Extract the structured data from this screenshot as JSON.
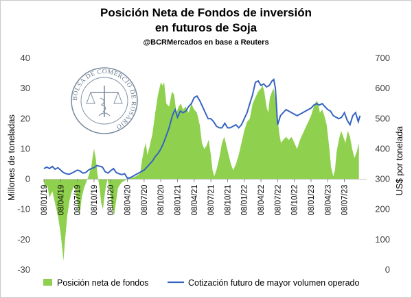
{
  "chart_data": {
    "type": "area",
    "title_line1": "Posición Neta de Fondos de inversión",
    "title_line2": "en futuros de Soja",
    "subtitle": "@BCRMercados  en base a Reuters",
    "ylabel_left": "Millones de toneladas",
    "ylabel_right": "US$ por tonelada",
    "ylim_left": [
      -30,
      40
    ],
    "ylim_right": [
      0,
      700
    ],
    "yticks_left": [
      -30,
      -20,
      -10,
      0,
      10,
      20,
      30,
      40
    ],
    "yticks_right": [
      0,
      100,
      200,
      300,
      400,
      500,
      600,
      700
    ],
    "xlim": [
      0,
      58
    ],
    "xtick_labels": [
      {
        "t": 0,
        "label": "08/01/19"
      },
      {
        "t": 3,
        "label": "08/04/19"
      },
      {
        "t": 6,
        "label": "08/07/19"
      },
      {
        "t": 9,
        "label": "08/10/19"
      },
      {
        "t": 12,
        "label": "08/01/20"
      },
      {
        "t": 15,
        "label": "08/04/20"
      },
      {
        "t": 18,
        "label": "08/07/20"
      },
      {
        "t": 21,
        "label": "08/10/20"
      },
      {
        "t": 24,
        "label": "08/01/21"
      },
      {
        "t": 27,
        "label": "08/04/21"
      },
      {
        "t": 30,
        "label": "08/07/21"
      },
      {
        "t": 33,
        "label": "08/10/21"
      },
      {
        "t": 36,
        "label": "08/01/22"
      },
      {
        "t": 39,
        "label": "08/04/22"
      },
      {
        "t": 42,
        "label": "08/07/22"
      },
      {
        "t": 45,
        "label": "08/10/22"
      },
      {
        "t": 48,
        "label": "08/01/23"
      },
      {
        "t": 51,
        "label": "08/04/23"
      },
      {
        "t": 54,
        "label": "08/07/23"
      }
    ],
    "series": [
      {
        "name": "Posición neta de fondos",
        "axis": "left",
        "color": "#8fd14f",
        "points": [
          [
            0,
            -1
          ],
          [
            0.3,
            -3
          ],
          [
            0.6,
            -2
          ],
          [
            1,
            -6
          ],
          [
            1.5,
            -4
          ],
          [
            2,
            -8
          ],
          [
            2.5,
            -12
          ],
          [
            3,
            -18
          ],
          [
            3.3,
            -23
          ],
          [
            3.5,
            -27
          ],
          [
            3.8,
            -20
          ],
          [
            4.2,
            -12
          ],
          [
            4.6,
            -7
          ],
          [
            5,
            -4
          ],
          [
            5.5,
            -2
          ],
          [
            6,
            -8
          ],
          [
            6.4,
            -12
          ],
          [
            6.8,
            -6
          ],
          [
            7.2,
            -3
          ],
          [
            7.6,
            -1
          ],
          [
            8,
            1
          ],
          [
            8.5,
            4
          ],
          [
            8.8,
            8
          ],
          [
            9,
            10
          ],
          [
            9.3,
            7
          ],
          [
            9.6,
            2
          ],
          [
            10,
            -3
          ],
          [
            10.3,
            -8
          ],
          [
            10.6,
            -10
          ],
          [
            11,
            -4
          ],
          [
            11.4,
            0
          ],
          [
            11.8,
            -3
          ],
          [
            12.2,
            -9
          ],
          [
            12.6,
            -12
          ],
          [
            13,
            -7
          ],
          [
            13.3,
            -3
          ],
          [
            13.6,
            -2
          ],
          [
            14,
            -1
          ],
          [
            14.5,
            -0.5
          ],
          [
            15,
            0
          ],
          [
            15.5,
            0.5
          ],
          [
            16,
            0.5
          ],
          [
            16.5,
            1
          ],
          [
            17,
            1.5
          ],
          [
            17.3,
            2
          ],
          [
            17.6,
            6
          ],
          [
            18,
            10
          ],
          [
            18.3,
            12
          ],
          [
            18.6,
            8
          ],
          [
            19,
            11
          ],
          [
            19.5,
            15
          ],
          [
            20,
            22
          ],
          [
            20.5,
            28
          ],
          [
            21,
            32
          ],
          [
            21.3,
            31
          ],
          [
            21.6,
            32
          ],
          [
            22,
            25
          ],
          [
            22.5,
            24
          ],
          [
            23,
            29
          ],
          [
            23.4,
            28
          ],
          [
            23.8,
            22
          ],
          [
            24.2,
            24
          ],
          [
            24.6,
            25
          ],
          [
            25,
            23
          ],
          [
            25.5,
            24
          ],
          [
            26,
            22
          ],
          [
            26.5,
            25
          ],
          [
            27,
            23
          ],
          [
            27.5,
            22
          ],
          [
            28,
            18
          ],
          [
            28.4,
            12
          ],
          [
            28.8,
            10
          ],
          [
            29.2,
            11
          ],
          [
            29.6,
            13
          ],
          [
            30,
            8
          ],
          [
            30.3,
            3
          ],
          [
            30.6,
            1
          ],
          [
            31,
            3
          ],
          [
            31.5,
            7
          ],
          [
            32,
            12
          ],
          [
            32.4,
            14
          ],
          [
            32.8,
            11
          ],
          [
            33.2,
            8
          ],
          [
            33.6,
            5
          ],
          [
            34,
            3
          ],
          [
            34.5,
            5
          ],
          [
            35,
            8
          ],
          [
            35.5,
            12
          ],
          [
            36,
            16
          ],
          [
            36.5,
            19
          ],
          [
            37,
            20
          ],
          [
            37.5,
            25
          ],
          [
            38,
            27
          ],
          [
            38.5,
            29
          ],
          [
            39,
            30
          ],
          [
            39.3,
            31
          ],
          [
            39.6,
            29
          ],
          [
            40,
            24
          ],
          [
            40.3,
            22
          ],
          [
            40.6,
            27
          ],
          [
            41,
            29
          ],
          [
            41.3,
            30
          ],
          [
            41.6,
            26
          ],
          [
            42,
            20
          ],
          [
            42.3,
            15
          ],
          [
            42.6,
            12
          ],
          [
            43,
            13
          ],
          [
            43.5,
            14
          ],
          [
            44,
            13
          ],
          [
            44.5,
            14
          ],
          [
            45,
            12
          ],
          [
            45.5,
            10
          ],
          [
            46,
            13
          ],
          [
            46.5,
            15
          ],
          [
            47,
            17
          ],
          [
            47.5,
            19
          ],
          [
            48,
            21
          ],
          [
            48.5,
            24
          ],
          [
            49,
            26
          ],
          [
            49.3,
            25
          ],
          [
            49.6,
            22
          ],
          [
            50,
            23
          ],
          [
            50.4,
            21
          ],
          [
            50.8,
            18
          ],
          [
            51,
            15
          ],
          [
            51.3,
            10
          ],
          [
            51.6,
            4
          ],
          [
            52,
            1
          ],
          [
            52.3,
            3
          ],
          [
            52.6,
            9
          ],
          [
            53,
            13
          ],
          [
            53.4,
            16
          ],
          [
            53.8,
            14
          ],
          [
            54.2,
            12
          ],
          [
            54.6,
            16
          ],
          [
            55,
            14
          ],
          [
            55.4,
            10
          ],
          [
            55.8,
            7
          ],
          [
            56.2,
            9
          ],
          [
            56.6,
            12
          ]
        ]
      },
      {
        "name": "Cotización futuro de mayor volumen operado",
        "axis": "right",
        "color": "#3563c2",
        "points": [
          [
            0,
            335
          ],
          [
            0.5,
            340
          ],
          [
            1,
            335
          ],
          [
            1.5,
            342
          ],
          [
            2,
            333
          ],
          [
            2.5,
            338
          ],
          [
            3,
            330
          ],
          [
            3.5,
            322
          ],
          [
            4,
            318
          ],
          [
            4.5,
            316
          ],
          [
            5,
            320
          ],
          [
            5.5,
            325
          ],
          [
            6,
            330
          ],
          [
            6.5,
            327
          ],
          [
            7,
            320
          ],
          [
            7.5,
            322
          ],
          [
            8,
            330
          ],
          [
            8.5,
            335
          ],
          [
            9,
            338
          ],
          [
            9.5,
            345
          ],
          [
            10,
            343
          ],
          [
            10.5,
            340
          ],
          [
            11,
            325
          ],
          [
            11.5,
            320
          ],
          [
            12,
            328
          ],
          [
            12.5,
            335
          ],
          [
            13,
            322
          ],
          [
            13.5,
            318
          ],
          [
            14,
            315
          ],
          [
            14.5,
            318
          ],
          [
            15,
            303
          ],
          [
            15.5,
            305
          ],
          [
            16,
            310
          ],
          [
            16.5,
            315
          ],
          [
            17,
            320
          ],
          [
            17.5,
            325
          ],
          [
            18,
            330
          ],
          [
            18.5,
            340
          ],
          [
            19,
            350
          ],
          [
            19.5,
            360
          ],
          [
            20,
            375
          ],
          [
            20.5,
            385
          ],
          [
            21,
            400
          ],
          [
            21.5,
            420
          ],
          [
            22,
            445
          ],
          [
            22.5,
            470
          ],
          [
            23,
            505
          ],
          [
            23.3,
            520
          ],
          [
            23.6,
            530
          ],
          [
            24,
            505
          ],
          [
            24.5,
            525
          ],
          [
            25,
            520
          ],
          [
            25.5,
            525
          ],
          [
            26,
            540
          ],
          [
            26.5,
            550
          ],
          [
            27,
            570
          ],
          [
            27.5,
            575
          ],
          [
            28,
            560
          ],
          [
            28.5,
            540
          ],
          [
            29,
            520
          ],
          [
            29.5,
            500
          ],
          [
            30,
            500
          ],
          [
            30.5,
            490
          ],
          [
            31,
            475
          ],
          [
            31.5,
            470
          ],
          [
            32,
            470
          ],
          [
            32.5,
            485
          ],
          [
            33,
            470
          ],
          [
            33.5,
            470
          ],
          [
            34,
            475
          ],
          [
            34.5,
            480
          ],
          [
            35,
            470
          ],
          [
            35.5,
            480
          ],
          [
            36,
            500
          ],
          [
            36.5,
            520
          ],
          [
            37,
            550
          ],
          [
            37.5,
            580
          ],
          [
            38,
            620
          ],
          [
            38.5,
            625
          ],
          [
            39,
            610
          ],
          [
            39.5,
            615
          ],
          [
            40,
            605
          ],
          [
            40.5,
            610
          ],
          [
            41,
            625
          ],
          [
            41.3,
            630
          ],
          [
            41.6,
            600
          ],
          [
            42,
            480
          ],
          [
            42.5,
            510
          ],
          [
            43,
            520
          ],
          [
            43.5,
            530
          ],
          [
            44,
            525
          ],
          [
            44.5,
            520
          ],
          [
            45,
            515
          ],
          [
            45.5,
            510
          ],
          [
            46,
            515
          ],
          [
            46.5,
            520
          ],
          [
            47,
            525
          ],
          [
            47.5,
            530
          ],
          [
            48,
            535
          ],
          [
            48.5,
            545
          ],
          [
            49,
            550
          ],
          [
            49.5,
            545
          ],
          [
            50,
            550
          ],
          [
            50.5,
            540
          ],
          [
            51,
            530
          ],
          [
            51.5,
            525
          ],
          [
            52,
            510
          ],
          [
            52.5,
            505
          ],
          [
            53,
            500
          ],
          [
            53.5,
            505
          ],
          [
            54,
            520
          ],
          [
            54.5,
            495
          ],
          [
            55,
            480
          ],
          [
            55.5,
            510
          ],
          [
            56,
            520
          ],
          [
            56.5,
            490
          ],
          [
            56.8,
            510
          ]
        ]
      }
    ],
    "legend_position": "bottom",
    "grid": false
  },
  "watermark": {
    "text": "BOLSA DE COMERCIO DE ROSARIO",
    "color": "#6d7f93"
  }
}
